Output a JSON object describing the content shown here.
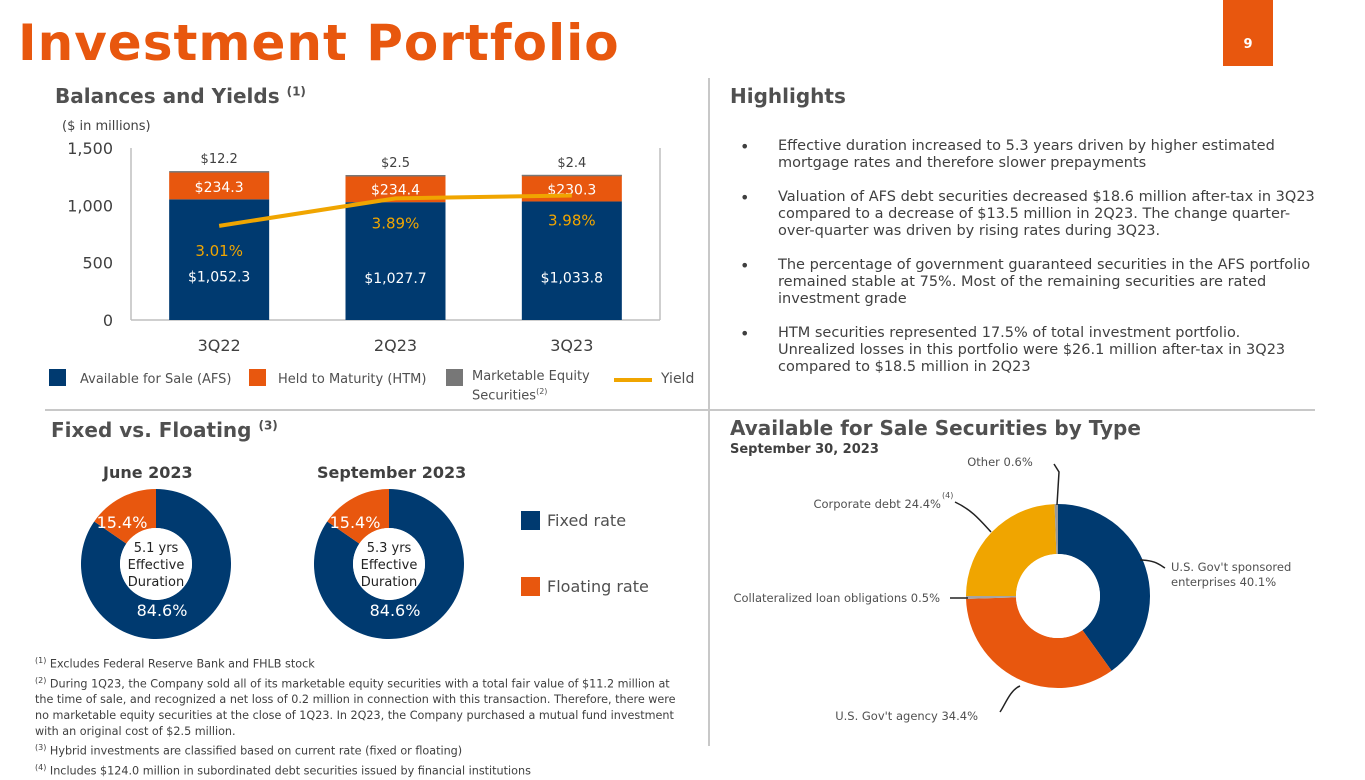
{
  "title": "Investment Portfolio",
  "page_number": "9",
  "balances": {
    "title": "Balances and Yields",
    "title_sup": "(1)",
    "units": "($ in millions)"
  },
  "chart_data": [
    {
      "type": "bar",
      "stacked": true,
      "categories": [
        "3Q22",
        "2Q23",
        "3Q23"
      ],
      "yticks": [
        "0",
        "500",
        "1,000",
        "1,500"
      ],
      "ylim": [
        0,
        1500
      ],
      "series": [
        {
          "name": "Available for Sale (AFS)",
          "values": [
            1052.3,
            1027.7,
            1033.8
          ],
          "labels": [
            "$1,052.3",
            "$1,027.7",
            "$1,033.8"
          ],
          "color": "#003a70"
        },
        {
          "name": "Held to Maturity (HTM)",
          "values": [
            234.3,
            234.4,
            230.3
          ],
          "labels": [
            "$234.3",
            "$234.4",
            "$230.3"
          ],
          "color": "#e8570e"
        },
        {
          "name": "Marketable Equity Securities",
          "name_sup": "(2)",
          "values": [
            12.2,
            2.5,
            2.4
          ],
          "labels": [
            "$12.2",
            "$2.5",
            "$2.4"
          ],
          "color": "#777777"
        }
      ],
      "line": {
        "name": "Yield",
        "values": [
          3.01,
          3.89,
          3.98
        ],
        "labels": [
          "3.01%",
          "3.89%",
          "3.98%"
        ],
        "color": "#f0a500",
        "ylim": [
          0,
          5.5
        ]
      }
    },
    {
      "type": "pie",
      "title": "June 2023",
      "center_text": [
        "5.1 yrs",
        "Effective",
        "Duration"
      ],
      "slices": [
        {
          "name": "Fixed rate",
          "value": 84.6,
          "label": "84.6%",
          "color": "#003a70"
        },
        {
          "name": "Floating rate",
          "value": 15.4,
          "label": "15.4%",
          "color": "#e8570e"
        }
      ]
    },
    {
      "type": "pie",
      "title": "September 2023",
      "center_text": [
        "5.3 yrs",
        "Effective",
        "Duration"
      ],
      "slices": [
        {
          "name": "Fixed rate",
          "value": 84.6,
          "label": "84.6%",
          "color": "#003a70"
        },
        {
          "name": "Floating rate",
          "value": 15.4,
          "label": "15.4%",
          "color": "#e8570e"
        }
      ]
    },
    {
      "type": "pie",
      "title": "Available for Sale Securities by Type",
      "subtitle": "September 30, 2023",
      "slices": [
        {
          "name": "U.S. Gov't sponsored enterprises",
          "value": 40.1,
          "label_lines": [
            "U.S. Gov't sponsored",
            "enterprises  40.1%"
          ],
          "color": "#003a70"
        },
        {
          "name": "U.S. Gov't agency",
          "value": 34.4,
          "label_lines": [
            "U.S. Gov't agency  34.4%"
          ],
          "color": "#e8570e"
        },
        {
          "name": "Collateralized loan obligations",
          "value": 0.5,
          "label_lines": [
            "Collateralized loan obligations 0.5%"
          ],
          "color": "#a5a5a5"
        },
        {
          "name": "Corporate debt",
          "value": 24.4,
          "label_lines": [
            "Corporate debt 24.4%"
          ],
          "label_sup": "(4)",
          "color": "#f0a500"
        },
        {
          "name": "Other",
          "value": 0.6,
          "label_lines": [
            "Other 0.6%"
          ],
          "color": "#9a9a9a"
        }
      ]
    }
  ],
  "fixed_floating": {
    "title": "Fixed vs. Floating",
    "title_sup": "(3)",
    "legend": [
      {
        "label": "Fixed rate",
        "color": "#003a70"
      },
      {
        "label": "Floating rate",
        "color": "#e8570e"
      }
    ]
  },
  "highlights": {
    "title": "Highlights",
    "items": [
      "Effective duration increased to 5.3 years driven by higher estimated mortgage rates and therefore slower prepayments",
      "Valuation of AFS debt securities decreased $18.6 million after-tax in 3Q23 compared to a decrease of $13.5 million in 2Q23.  The change quarter-over-quarter was driven by rising rates during 3Q23.",
      "The percentage of government guaranteed securities in the AFS portfolio remained stable at 75%. Most of the remaining securities are rated investment grade",
      "HTM securities represented 17.5% of total investment portfolio. Unrealized losses in this portfolio were $26.1 million after-tax in 3Q23 compared to $18.5 million in 2Q23"
    ]
  },
  "footnotes": [
    {
      "mark": "(1)",
      "text": "Excludes Federal Reserve Bank and FHLB stock"
    },
    {
      "mark": "(2)",
      "text": "During 1Q23, the Company sold all of its marketable equity securities with a total fair value of $11.2 million at the time of sale, and recognized a net loss of 0.2 million in connection with this transaction. Therefore, there were no marketable equity securities at the close of 1Q23. In 2Q23, the Company purchased a mutual fund investment with an original cost of $2.5 million."
    },
    {
      "mark": "(3)",
      "text": "Hybrid investments are classified based on current rate (fixed or floating)"
    },
    {
      "mark": "(4)",
      "text": "Includes $124.0 million in subordinated debt securities issued by financial institutions"
    }
  ]
}
